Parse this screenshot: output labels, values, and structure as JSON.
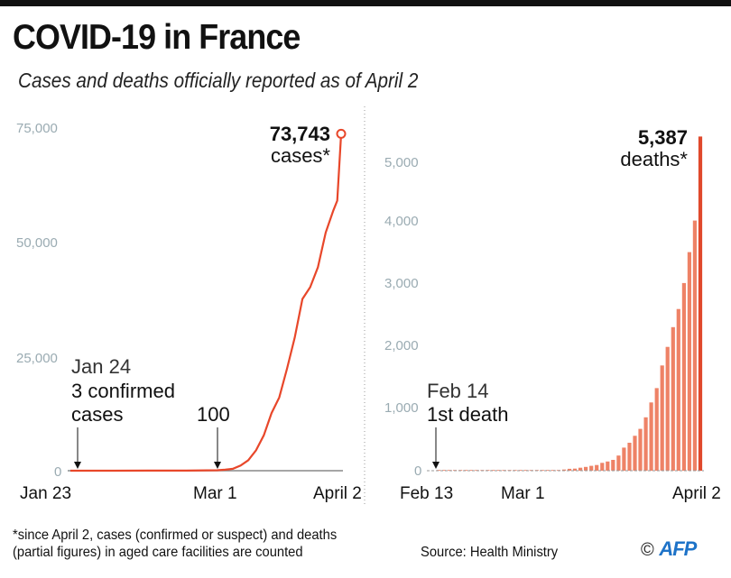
{
  "header": {
    "title": "COVID-19 in France",
    "subtitle": "Cases and deaths officially reported as of April 2"
  },
  "footer": {
    "note_line1": "*since April 2, cases (confirmed or suspect) and deaths",
    "note_line2": "(partial figures) in aged care facilities are counted",
    "source": "Source: Health Ministry",
    "copyright": "©",
    "logo": "AFP"
  },
  "colors": {
    "accent": "#e8472a",
    "bar": "#ee8266",
    "bar_last": "#e0492c",
    "axis_tick": "#9aabb2"
  },
  "chart_data": [
    {
      "type": "line",
      "title": "Cases",
      "x_start": "Jan 23",
      "x_end": "April 2",
      "xticks": [
        "Jan 23",
        "Mar 1",
        "April 2"
      ],
      "yticks": [
        "0",
        "25,000",
        "50,000",
        "75,000"
      ],
      "ylim": [
        0,
        75000
      ],
      "grid": false,
      "series": [
        {
          "name": "cases",
          "days_since_jan23": [
            0,
            1,
            10,
            20,
            30,
            38,
            40,
            42,
            44,
            46,
            48,
            50,
            52,
            54,
            56,
            58,
            60,
            62,
            64,
            66,
            68,
            69,
            70
          ],
          "values": [
            0,
            3,
            6,
            12,
            12,
            100,
            212,
            423,
            1126,
            2281,
            4469,
            7730,
            12612,
            16018,
            22304,
            29155,
            37575,
            40174,
            44550,
            52128,
            56989,
            59105,
            73743
          ]
        }
      ],
      "annotations": [
        {
          "label_top": "Jan 24",
          "label": "3 confirmed cases",
          "date": "Jan 24"
        },
        {
          "label": "100",
          "date": "Mar 1"
        },
        {
          "value_label": "73,743",
          "unit_label": "cases*"
        }
      ]
    },
    {
      "type": "bar",
      "title": "Deaths",
      "xticks": [
        "Feb 13",
        "Mar 1",
        "April 2"
      ],
      "yticks": [
        "0",
        "1,000",
        "2,000",
        "3,000",
        "4,000",
        "5,000"
      ],
      "ylim": [
        0,
        5500
      ],
      "grid": false,
      "series": [
        {
          "name": "deaths",
          "start_date": "Feb 13",
          "values": [
            0,
            1,
            1,
            1,
            1,
            1,
            1,
            1,
            1,
            1,
            1,
            1,
            1,
            1,
            1,
            1,
            1,
            2,
            2,
            3,
            4,
            6,
            9,
            11,
            19,
            30,
            33,
            48,
            61,
            79,
            91,
            127,
            148,
            175,
            244,
            372,
            450,
            562,
            674,
            860,
            1100,
            1331,
            1696,
            1995,
            2314,
            2606,
            3024,
            3523,
            4032,
            5387
          ]
        }
      ],
      "annotations": [
        {
          "label_top": "Feb 14",
          "label": "1st death",
          "date": "Feb 14"
        },
        {
          "value_label": "5,387",
          "unit_label": "deaths*"
        }
      ]
    }
  ]
}
